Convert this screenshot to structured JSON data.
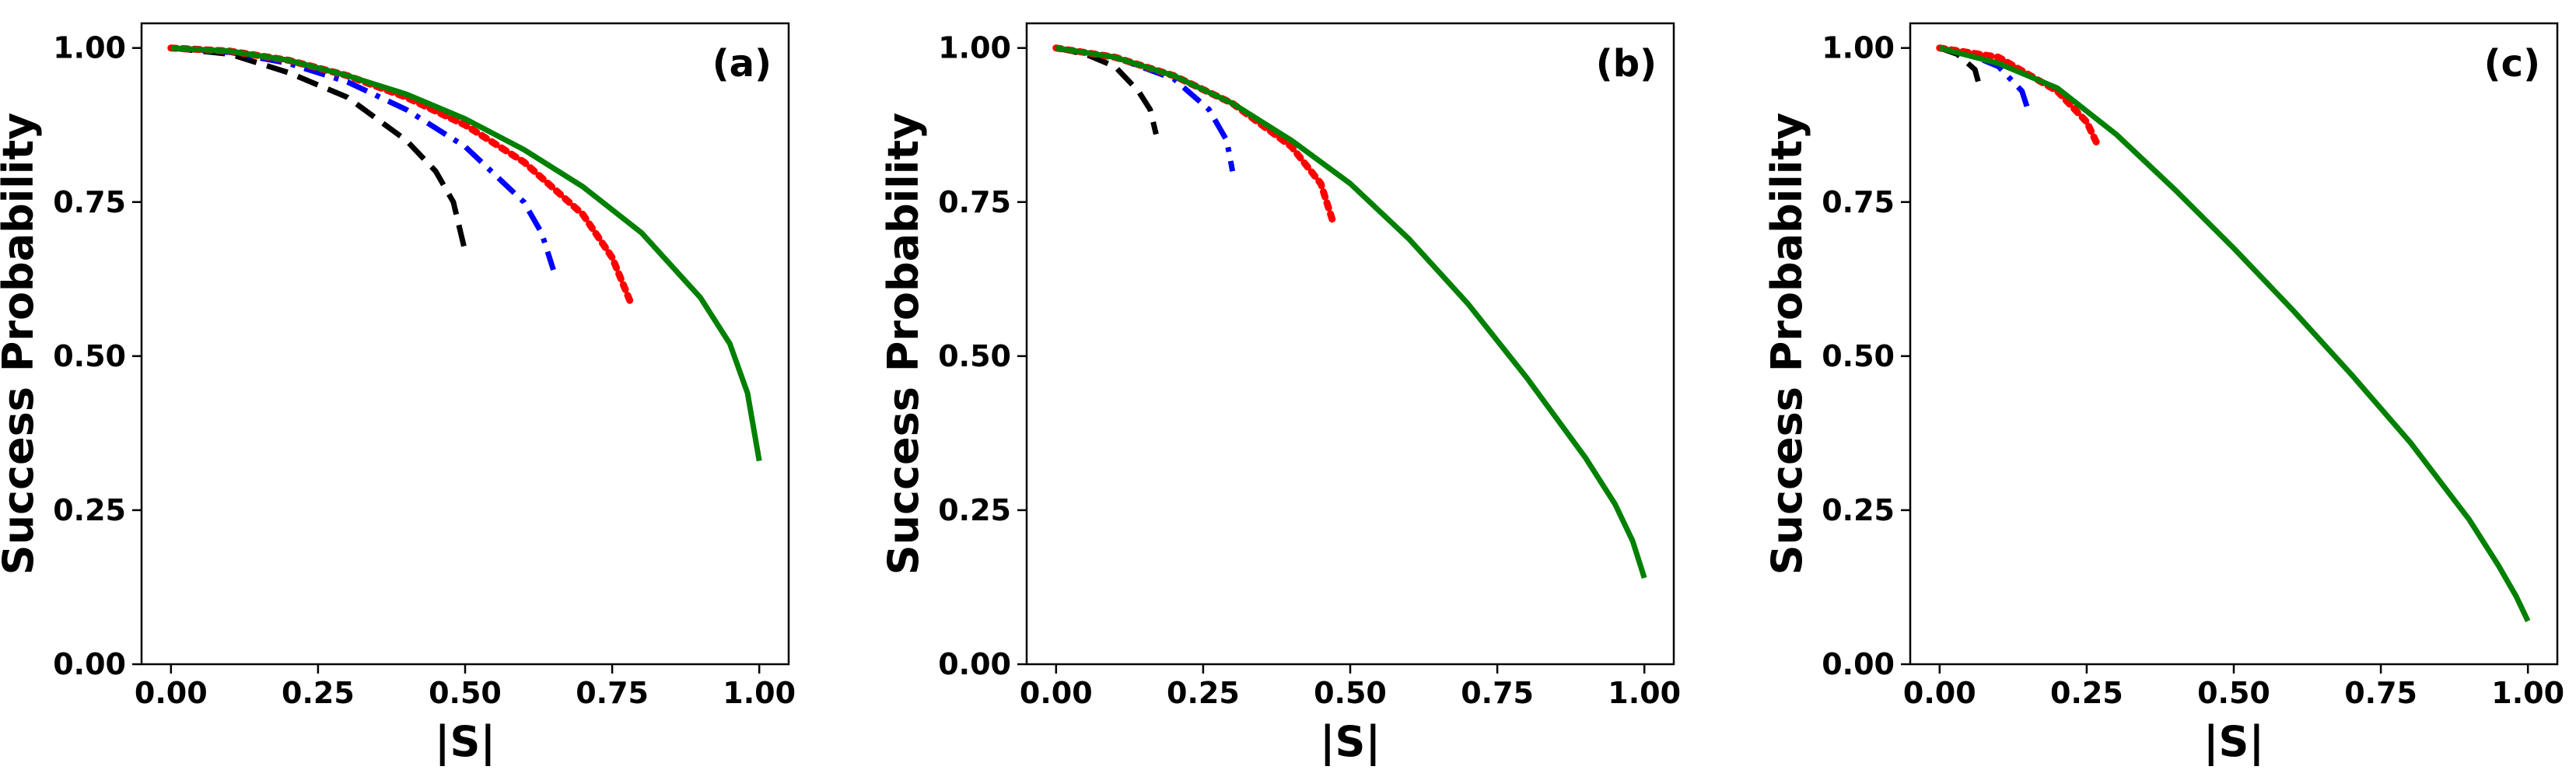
{
  "chart_data": [
    {
      "type": "line",
      "panel_label": "(a)",
      "xlabel": "|S|",
      "ylabel": "Success Probability",
      "xlim": [
        -0.05,
        1.05
      ],
      "ylim": [
        0.0,
        1.04
      ],
      "xticks": [
        "0.00",
        "0.25",
        "0.50",
        "0.75",
        "1.00"
      ],
      "yticks": [
        "0.00",
        "0.25",
        "0.50",
        "0.75",
        "1.00"
      ],
      "grid": false,
      "series": [
        {
          "color": "#000000",
          "dash": "dashed",
          "x": [
            0.0,
            0.1,
            0.2,
            0.3,
            0.4,
            0.45,
            0.48,
            0.5
          ],
          "y": [
            1.0,
            0.99,
            0.96,
            0.92,
            0.85,
            0.8,
            0.75,
            0.67
          ]
        },
        {
          "color": "#0000ff",
          "dash": "dashdot",
          "x": [
            0.0,
            0.1,
            0.2,
            0.3,
            0.4,
            0.5,
            0.6,
            0.63,
            0.65
          ],
          "y": [
            1.0,
            0.993,
            0.975,
            0.945,
            0.9,
            0.84,
            0.75,
            0.7,
            0.64
          ]
        },
        {
          "color": "#ff0000",
          "dash": "dotted",
          "x": [
            0.0,
            0.1,
            0.2,
            0.3,
            0.4,
            0.5,
            0.6,
            0.7,
            0.75,
            0.78
          ],
          "y": [
            1.0,
            0.995,
            0.98,
            0.955,
            0.92,
            0.875,
            0.815,
            0.73,
            0.66,
            0.59
          ]
        },
        {
          "color": "#008000",
          "dash": "solid",
          "x": [
            0.0,
            0.1,
            0.2,
            0.3,
            0.4,
            0.5,
            0.6,
            0.7,
            0.8,
            0.9,
            0.95,
            0.98,
            1.0
          ],
          "y": [
            1.0,
            0.995,
            0.98,
            0.955,
            0.925,
            0.885,
            0.835,
            0.775,
            0.7,
            0.595,
            0.52,
            0.44,
            0.33
          ]
        }
      ]
    },
    {
      "type": "line",
      "panel_label": "(b)",
      "xlabel": "|S|",
      "ylabel": "Success Probability",
      "xlim": [
        -0.05,
        1.05
      ],
      "ylim": [
        0.0,
        1.04
      ],
      "xticks": [
        "0.00",
        "0.25",
        "0.50",
        "0.75",
        "1.00"
      ],
      "yticks": [
        "0.00",
        "0.25",
        "0.50",
        "0.75",
        "1.00"
      ],
      "grid": false,
      "series": [
        {
          "color": "#000000",
          "dash": "dashed",
          "x": [
            0.0,
            0.05,
            0.1,
            0.14,
            0.16,
            0.17
          ],
          "y": [
            1.0,
            0.99,
            0.97,
            0.93,
            0.9,
            0.86
          ]
        },
        {
          "color": "#0000ff",
          "dash": "dashdot",
          "x": [
            0.0,
            0.1,
            0.2,
            0.26,
            0.29,
            0.3
          ],
          "y": [
            1.0,
            0.985,
            0.95,
            0.9,
            0.85,
            0.8
          ]
        },
        {
          "color": "#ff0000",
          "dash": "dotted",
          "x": [
            0.0,
            0.1,
            0.2,
            0.3,
            0.4,
            0.45,
            0.47
          ],
          "y": [
            1.0,
            0.985,
            0.955,
            0.91,
            0.84,
            0.78,
            0.72
          ]
        },
        {
          "color": "#008000",
          "dash": "solid",
          "x": [
            0.0,
            0.1,
            0.2,
            0.3,
            0.4,
            0.5,
            0.6,
            0.7,
            0.8,
            0.9,
            0.95,
            0.98,
            1.0
          ],
          "y": [
            1.0,
            0.985,
            0.955,
            0.91,
            0.85,
            0.78,
            0.69,
            0.585,
            0.465,
            0.335,
            0.26,
            0.2,
            0.14
          ]
        }
      ]
    },
    {
      "type": "line",
      "panel_label": "(c)",
      "xlabel": "|S|",
      "ylabel": "Success Probability",
      "xlim": [
        -0.05,
        1.05
      ],
      "ylim": [
        0.0,
        1.04
      ],
      "xticks": [
        "0.00",
        "0.25",
        "0.50",
        "0.75",
        "1.00"
      ],
      "yticks": [
        "0.00",
        "0.25",
        "0.50",
        "0.75",
        "1.00"
      ],
      "grid": false,
      "series": [
        {
          "color": "#000000",
          "dash": "dashed",
          "x": [
            0.0,
            0.03,
            0.06,
            0.07
          ],
          "y": [
            1.0,
            0.99,
            0.965,
            0.93
          ]
        },
        {
          "color": "#0000ff",
          "dash": "dashdot",
          "x": [
            0.0,
            0.05,
            0.1,
            0.14,
            0.15
          ],
          "y": [
            1.0,
            0.99,
            0.97,
            0.93,
            0.9
          ]
        },
        {
          "color": "#ff0000",
          "dash": "dotted",
          "x": [
            0.0,
            0.1,
            0.2,
            0.25,
            0.27
          ],
          "y": [
            1.0,
            0.985,
            0.93,
            0.88,
            0.84
          ]
        },
        {
          "color": "#008000",
          "dash": "solid",
          "x": [
            0.0,
            0.1,
            0.2,
            0.3,
            0.4,
            0.5,
            0.6,
            0.7,
            0.8,
            0.9,
            0.95,
            0.98,
            1.0
          ],
          "y": [
            1.0,
            0.975,
            0.935,
            0.86,
            0.77,
            0.675,
            0.575,
            0.47,
            0.36,
            0.235,
            0.16,
            0.11,
            0.07
          ]
        }
      ]
    }
  ]
}
